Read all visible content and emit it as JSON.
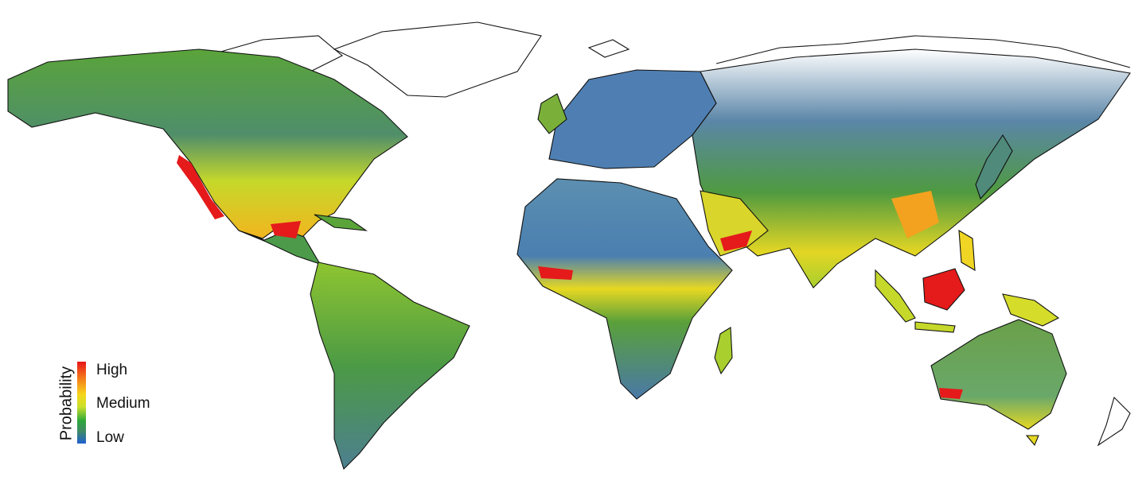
{
  "legend": {
    "title": "Probability",
    "high_label": "High",
    "medium_label": "Medium",
    "low_label": "Low",
    "colors": {
      "high": "#e8141a",
      "medium": "#f6d51c",
      "mid_low": "#2ea83a",
      "low": "#1f5fd0"
    }
  },
  "palette": {
    "blue": "#4a7ab0",
    "teal": "#4d8a6a",
    "green": "#3a9a3a",
    "lime": "#a8cf2e",
    "yellow": "#f3dd22",
    "orange": "#f2a21f",
    "red": "#e51a1a"
  }
}
